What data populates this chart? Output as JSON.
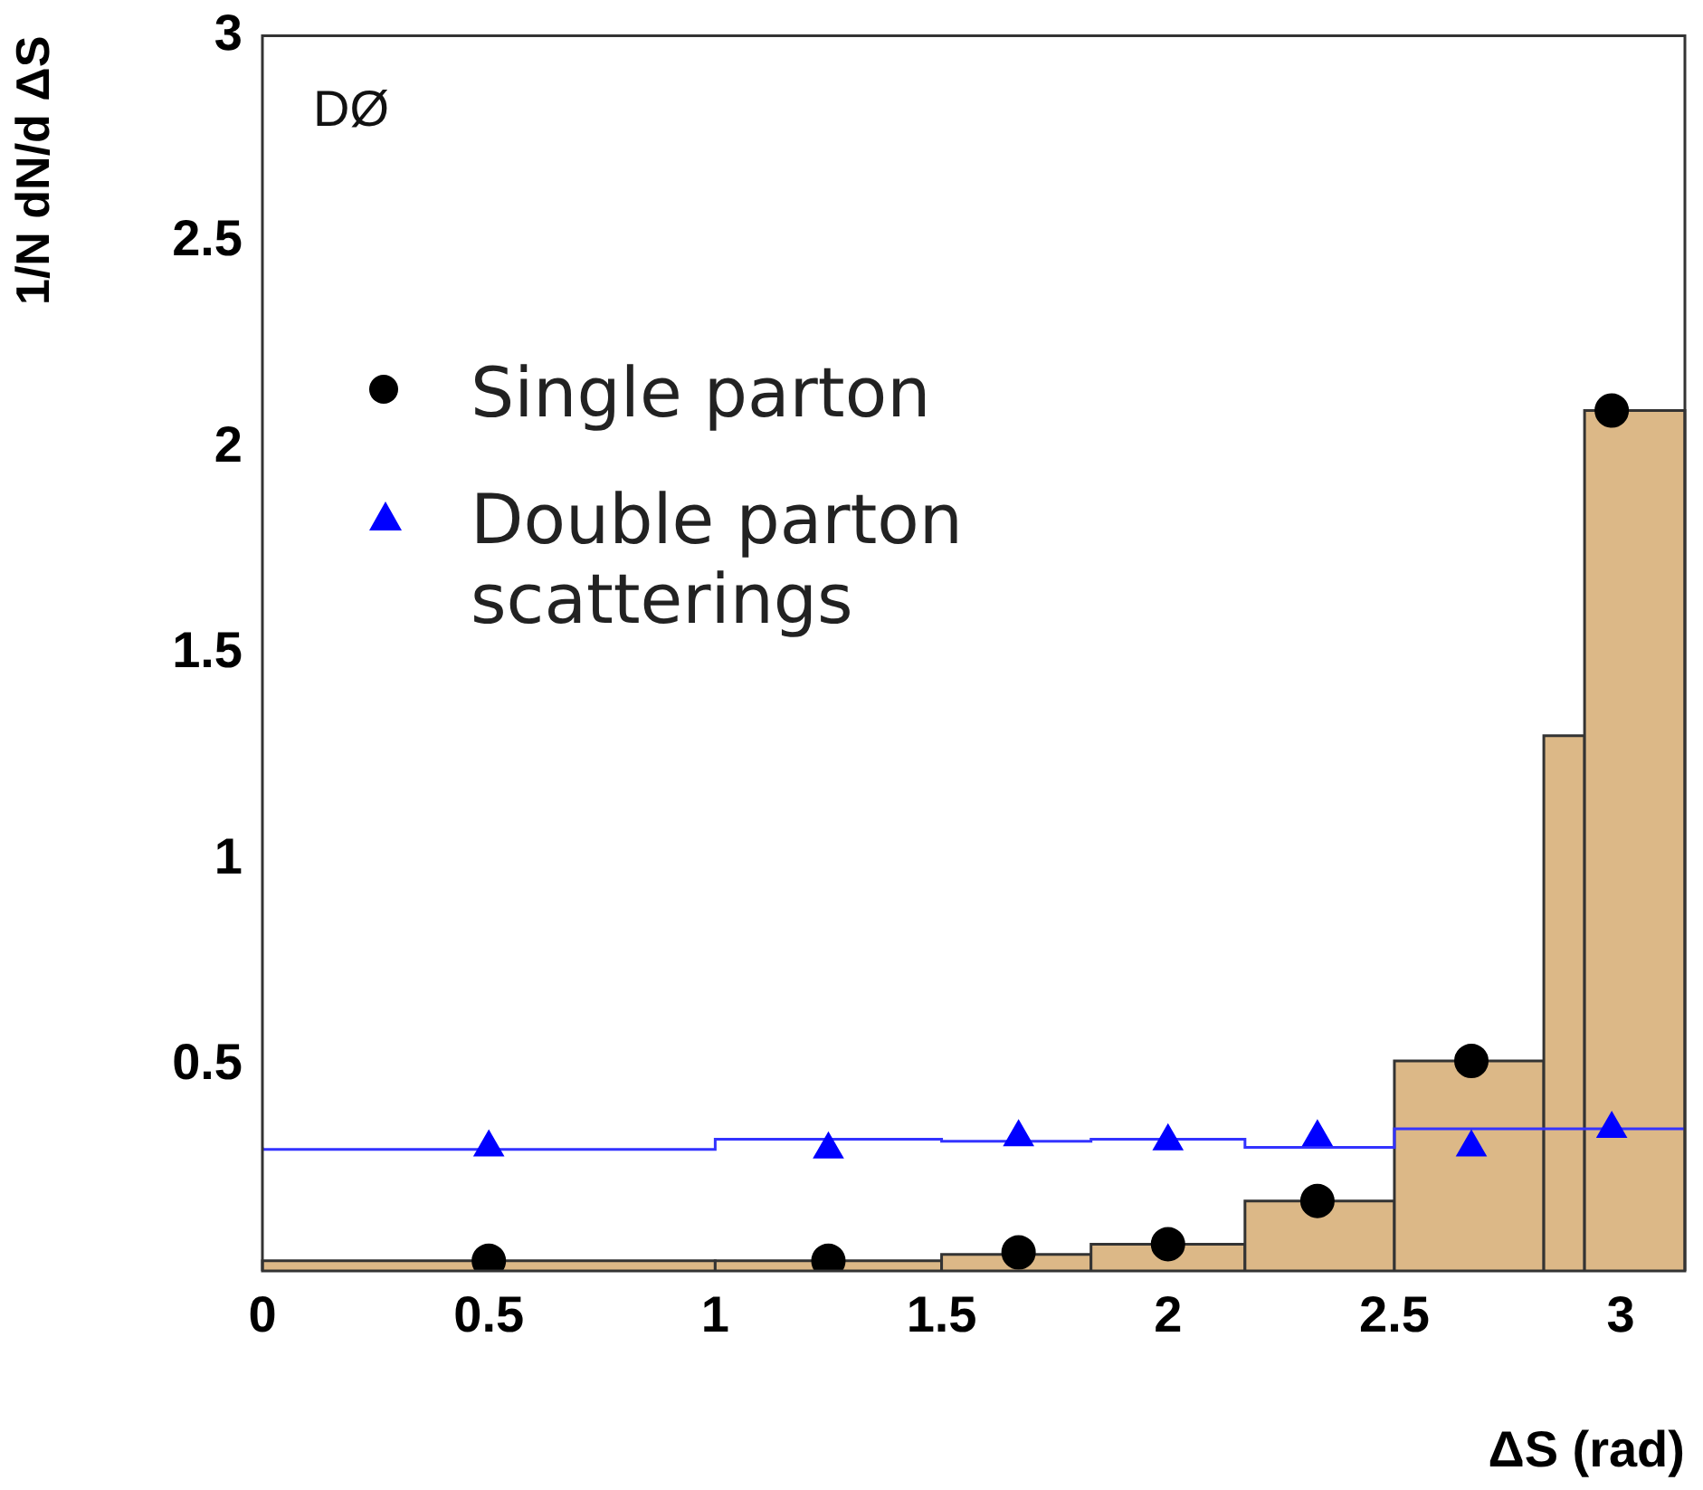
{
  "chart_data": {
    "type": "scatter",
    "xlabel": "ΔS (rad)",
    "ylabel": "1/N dN/d ΔS",
    "xlim": [
      0,
      3.1416
    ],
    "xticks": [
      0,
      0.5,
      1,
      1.5,
      2,
      2.5,
      3
    ],
    "ylim": [
      0,
      3
    ],
    "yticks": [
      0.5,
      1,
      1.5,
      2,
      2.5,
      3
    ],
    "grid": false,
    "legend": "top left",
    "annotations": [
      "DØ"
    ],
    "series": [
      {
        "type": "histogram",
        "color": "#dcb887",
        "bins": [
          0,
          1,
          1.5,
          1.83,
          2.17,
          2.5,
          2.83,
          2.92,
          3.1416
        ],
        "values": [
          0.025,
          0.025,
          0.04,
          0.065,
          0.17,
          0.51,
          1.3,
          2.09
        ]
      },
      {
        "type": "step",
        "color": "#3333ff",
        "x": [
          0,
          1,
          1.5,
          1.83,
          2.17,
          2.5,
          2.83,
          3.1416
        ],
        "values": [
          0.3,
          0.295,
          0.32,
          0.315,
          0.32,
          0.3,
          0.345,
          0.345
        ]
      },
      {
        "type": "scatter",
        "name": "Single parton",
        "color": "#000000",
        "marker": "circle",
        "x": [
          0.5,
          1.25,
          1.67,
          2.0,
          2.33,
          2.67,
          2.98
        ],
        "values": [
          0.025,
          0.025,
          0.045,
          0.065,
          0.17,
          0.51,
          2.09
        ]
      },
      {
        "type": "scatter",
        "name": "Double parton scatterings",
        "color": "#0000ff",
        "marker": "triangle",
        "x": [
          0.5,
          1.25,
          1.67,
          2.0,
          2.33,
          2.67,
          2.98
        ],
        "values": [
          0.3,
          0.295,
          0.325,
          0.315,
          0.325,
          0.3,
          0.345
        ]
      }
    ]
  }
}
